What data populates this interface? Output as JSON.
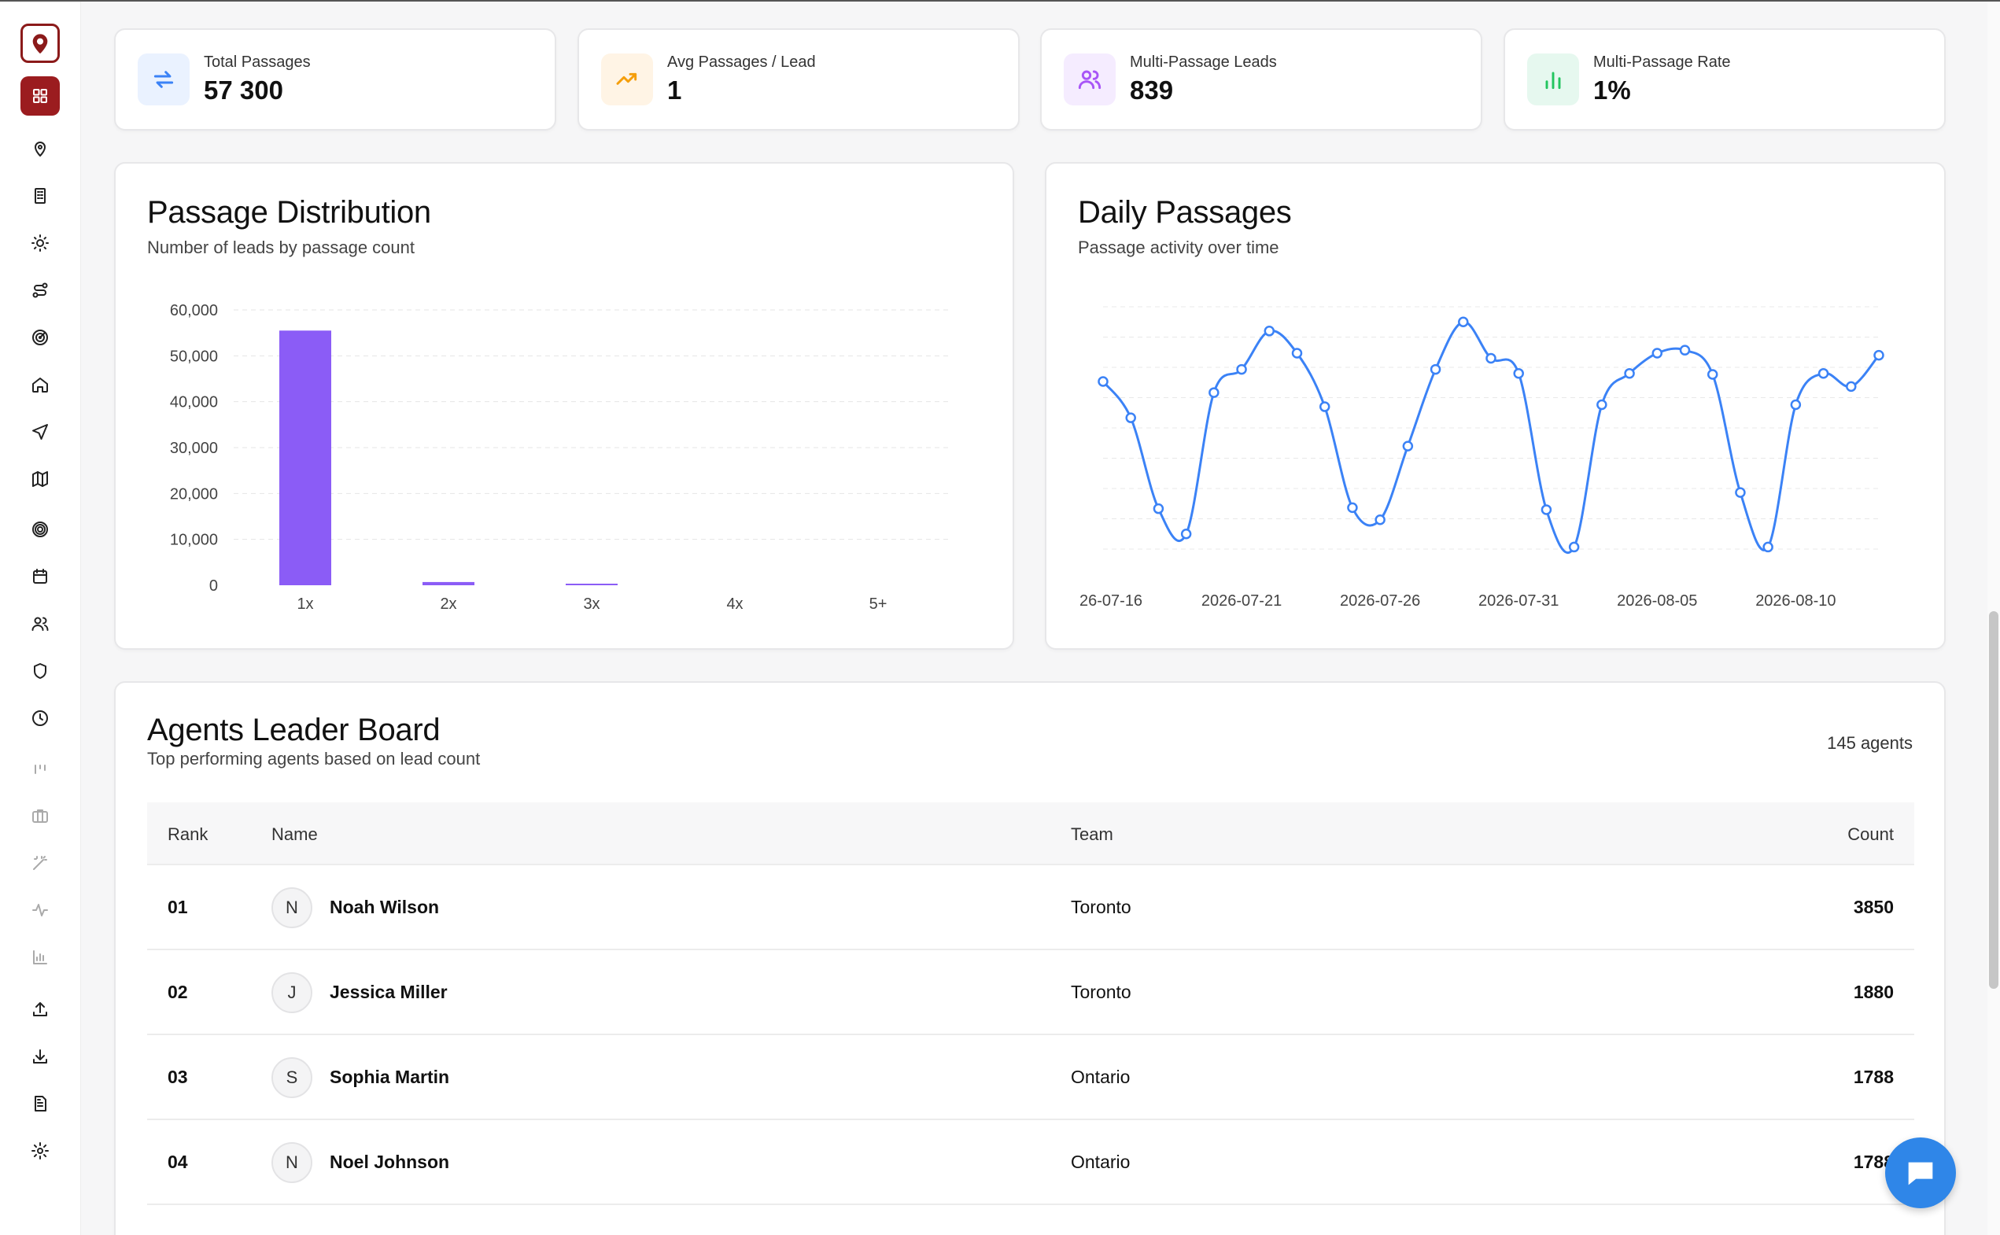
{
  "stats": [
    {
      "label": "Total Passages",
      "value": "57 300",
      "icon": "repeat-arrows-icon",
      "bg": "#eaf2ff",
      "color": "#3b82f6"
    },
    {
      "label": "Avg Passages / Lead",
      "value": "1",
      "icon": "trending-up-icon",
      "bg": "#fff4e5",
      "color": "#f59e0b"
    },
    {
      "label": "Multi-Passage Leads",
      "value": "839",
      "icon": "users-icon",
      "bg": "#f5ecff",
      "color": "#a855f7"
    },
    {
      "label": "Multi-Passage Rate",
      "value": "1%",
      "icon": "bar-chart-icon",
      "bg": "#e6f8ef",
      "color": "#22c55e"
    }
  ],
  "distribution": {
    "title": "Passage Distribution",
    "subtitle": "Number of leads by passage count"
  },
  "daily": {
    "title": "Daily Passages",
    "subtitle": "Passage activity over time"
  },
  "chart_data": [
    {
      "type": "bar",
      "title": "Passage Distribution",
      "subtitle": "Number of leads by passage count",
      "categories": [
        "1x",
        "2x",
        "3x",
        "4x",
        "5+"
      ],
      "values": [
        55500,
        700,
        130,
        0,
        0
      ],
      "ylim": [
        0,
        60000
      ],
      "yticks": [
        "0",
        "10,000",
        "20,000",
        "30,000",
        "40,000",
        "50,000",
        "60,000"
      ],
      "color": "#8b5cf6",
      "grid": true
    },
    {
      "type": "line",
      "title": "Daily Passages",
      "subtitle": "Passage activity over time",
      "xticks": [
        "26-07-16",
        "2026-07-21",
        "2026-07-26",
        "2026-07-31",
        "2026-08-05",
        "2026-08-10"
      ],
      "x": [
        "2026-07-16",
        "2026-07-17",
        "2026-07-18",
        "2026-07-19",
        "2026-07-20",
        "2026-07-21",
        "2026-07-22",
        "2026-07-23",
        "2026-07-24",
        "2026-07-25",
        "2026-07-26",
        "2026-07-27",
        "2026-07-28",
        "2026-07-29",
        "2026-07-30",
        "2026-07-31",
        "2026-08-01",
        "2026-08-02",
        "2026-08-03",
        "2026-08-04",
        "2026-08-05",
        "2026-08-06",
        "2026-08-07",
        "2026-08-08",
        "2026-08-09",
        "2026-08-10",
        "2026-08-11",
        "2026-08-12",
        "2026-08-13"
      ],
      "values": [
        2860,
        2500,
        1600,
        1350,
        2750,
        2980,
        3360,
        3140,
        2610,
        1610,
        1490,
        2220,
        2980,
        3450,
        3090,
        2940,
        1590,
        1220,
        2630,
        2940,
        3140,
        3170,
        2930,
        1760,
        1220,
        2630,
        2940,
        2810,
        3120
      ],
      "ylim": [
        1200,
        3600
      ],
      "color": "#3b82f6",
      "grid": true
    }
  ],
  "leaderboard": {
    "title": "Agents Leader Board",
    "subtitle": "Top performing agents based on lead count",
    "count_label": "145 agents",
    "columns": [
      "Rank",
      "Name",
      "Team",
      "Count"
    ],
    "rows": [
      {
        "rank": "01",
        "initial": "N",
        "name": "Noah Wilson",
        "team": "Toronto",
        "count": "3850"
      },
      {
        "rank": "02",
        "initial": "J",
        "name": "Jessica Miller",
        "team": "Toronto",
        "count": "1880"
      },
      {
        "rank": "03",
        "initial": "S",
        "name": "Sophia Martin",
        "team": "Ontario",
        "count": "1788"
      },
      {
        "rank": "04",
        "initial": "N",
        "name": "Noel Johnson",
        "team": "Ontario",
        "count": "1788"
      }
    ]
  }
}
